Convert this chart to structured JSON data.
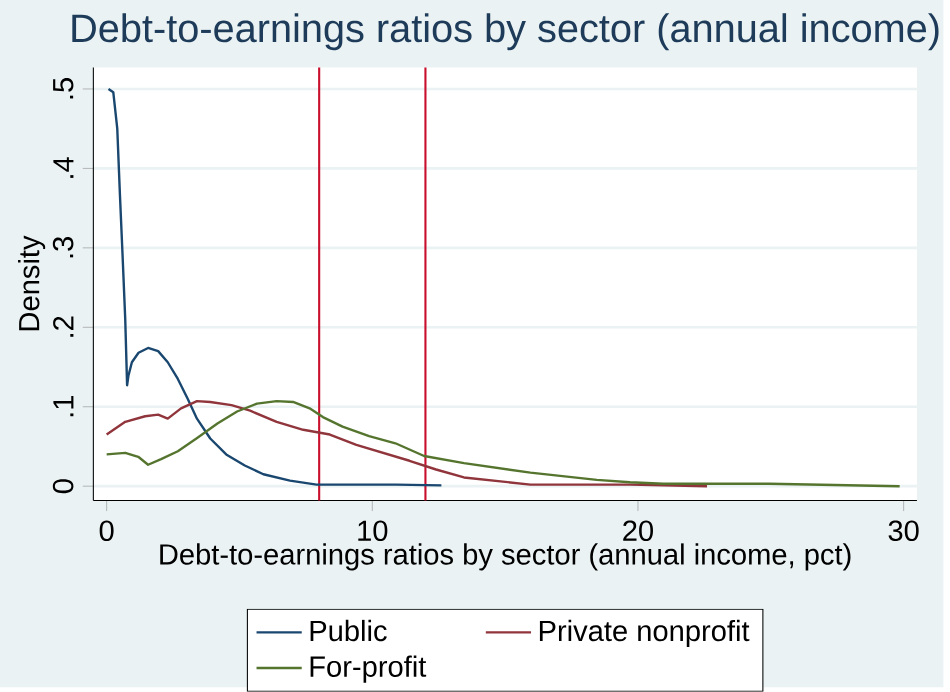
{
  "chart_data": {
    "type": "line",
    "title": "Debt-to-earnings ratios by sector (annual income)",
    "xlabel": "Debt-to-earnings ratios by sector (annual income, pct)",
    "ylabel": "Density",
    "xlim": [
      -0.5,
      30.5
    ],
    "ylim": [
      -0.018,
      0.527
    ],
    "xticks": [
      0,
      10,
      20,
      30
    ],
    "yticks": [
      0,
      {
        "value": 0.1,
        "label": ".1"
      },
      {
        "value": 0.2,
        "label": ".2"
      },
      {
        "value": 0.3,
        "label": ".3"
      },
      {
        "value": 0.4,
        "label": ".4"
      },
      {
        "value": 0.5,
        "label": ".5"
      }
    ],
    "grid": "y",
    "legend": "bottom",
    "series": [
      {
        "name": "Public",
        "color": "#1a476f",
        "x": [
          0.07,
          0.25,
          0.4,
          0.5,
          0.6,
          0.7,
          0.77,
          0.82,
          0.95,
          1.2,
          1.56,
          1.94,
          2.3,
          2.68,
          3.05,
          3.4,
          3.9,
          4.5,
          5.2,
          5.9,
          6.9,
          7.9,
          8.9,
          9.9,
          10.9,
          12.6
        ],
        "values": [
          0.5,
          0.496,
          0.45,
          0.367,
          0.29,
          0.21,
          0.127,
          0.139,
          0.156,
          0.168,
          0.174,
          0.17,
          0.156,
          0.135,
          0.11,
          0.085,
          0.06,
          0.04,
          0.026,
          0.015,
          0.007,
          0.002,
          0.002,
          0.002,
          0.002,
          0.001
        ]
      },
      {
        "name": "Private nonprofit",
        "color": "#90353b",
        "x": [
          0,
          0.7,
          1.45,
          1.94,
          2.3,
          2.8,
          3.4,
          3.9,
          4.7,
          5.4,
          6.4,
          7.4,
          8.4,
          9.4,
          10.4,
          11.4,
          12.4,
          13.45,
          15.95,
          19.7,
          22.6
        ],
        "values": [
          0.065,
          0.081,
          0.088,
          0.09,
          0.085,
          0.098,
          0.107,
          0.106,
          0.102,
          0.095,
          0.081,
          0.071,
          0.065,
          0.052,
          0.042,
          0.032,
          0.021,
          0.011,
          0.002,
          0.002,
          0.0
        ]
      },
      {
        "name": "For-profit",
        "color": "#55752f",
        "x": [
          0,
          0.7,
          1.19,
          1.56,
          2.05,
          2.68,
          3.42,
          4.17,
          4.91,
          5.66,
          6.4,
          7.02,
          7.64,
          8.14,
          8.88,
          9.88,
          10.87,
          11.95,
          13.45,
          15.95,
          18.45,
          19.7,
          20.95,
          24.95,
          29.85
        ],
        "values": [
          0.04,
          0.042,
          0.037,
          0.027,
          0.034,
          0.044,
          0.061,
          0.079,
          0.094,
          0.104,
          0.107,
          0.106,
          0.098,
          0.087,
          0.075,
          0.063,
          0.054,
          0.038,
          0.029,
          0.017,
          0.008,
          0.005,
          0.003,
          0.003,
          0.0
        ]
      }
    ],
    "ref_lines": [
      {
        "axis": "x",
        "value": 8,
        "color": "#c8102e"
      },
      {
        "axis": "x",
        "value": 12,
        "color": "#c8102e"
      }
    ]
  }
}
